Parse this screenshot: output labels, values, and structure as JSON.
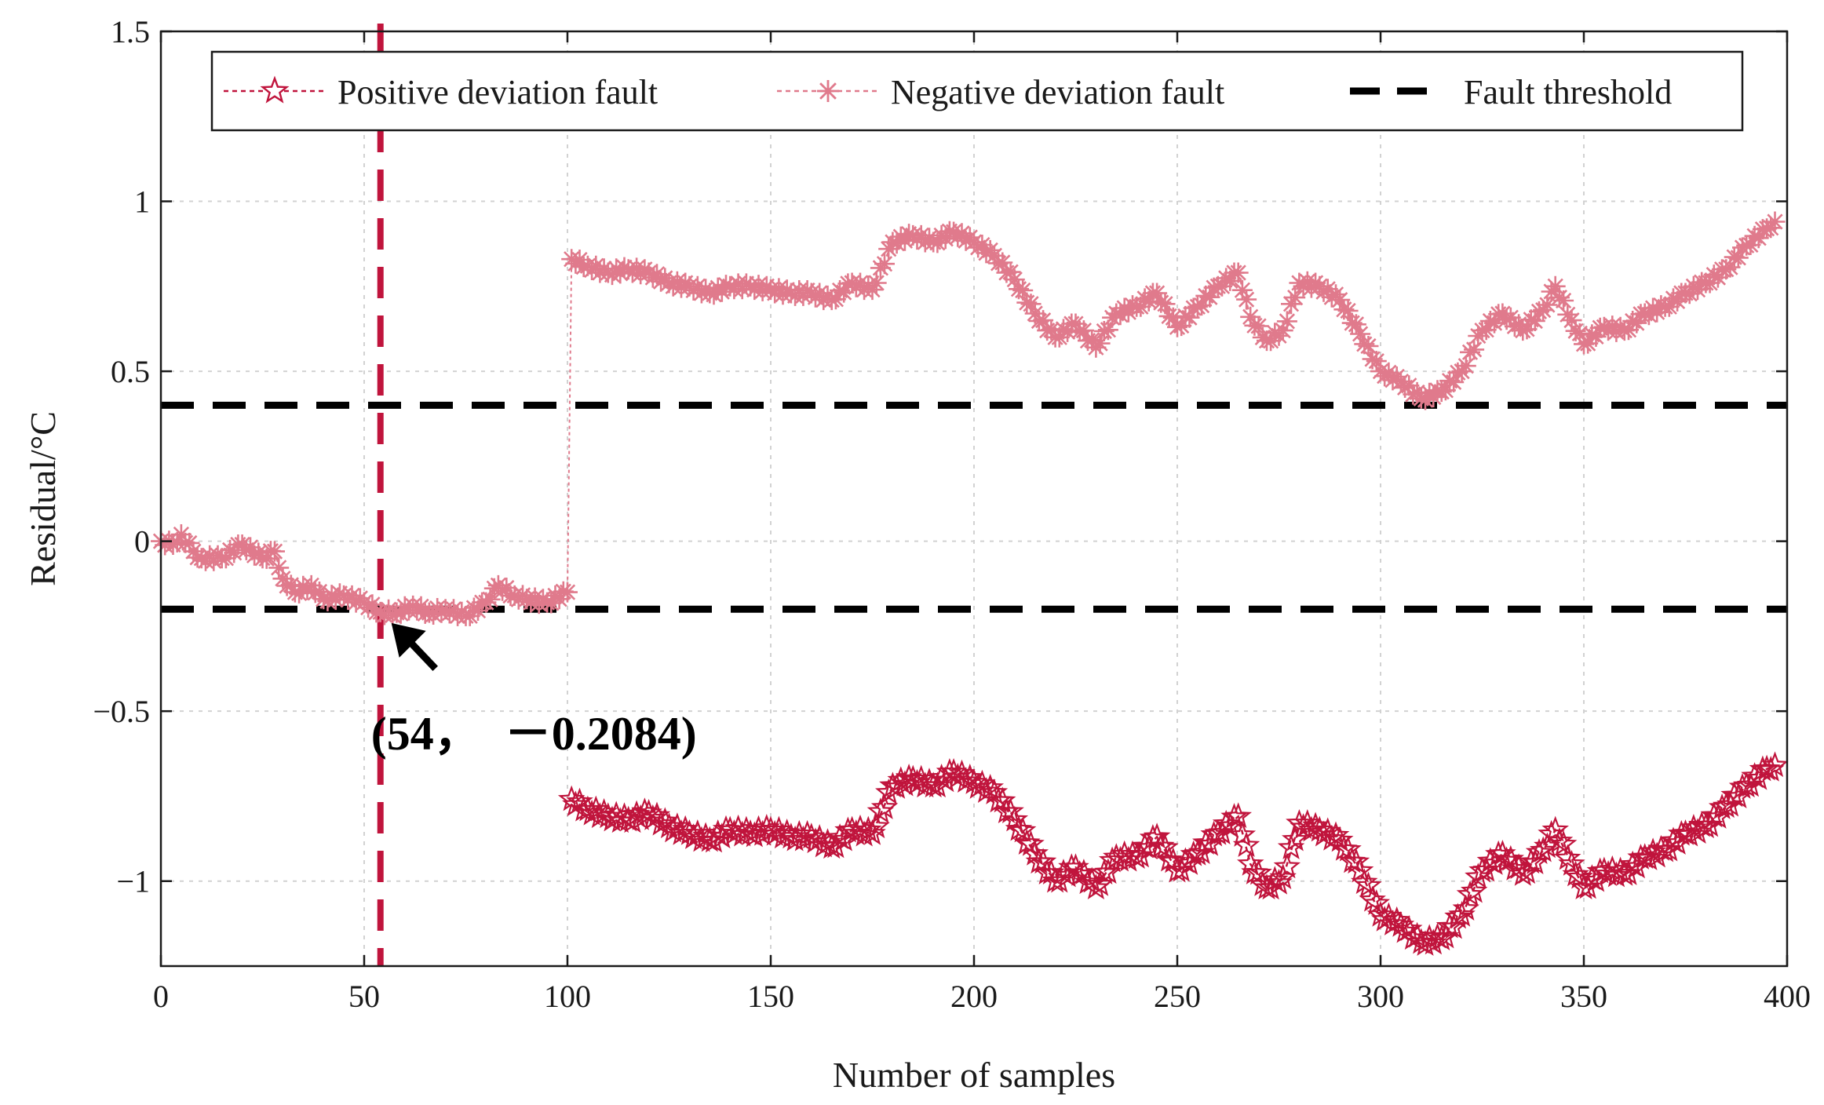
{
  "chart_data": {
    "type": "line",
    "xlabel": "Number of samples",
    "ylabel": "Residual/°C",
    "xlim": [
      0,
      400
    ],
    "ylim": [
      -1.25,
      1.5
    ],
    "x_ticks": [
      0,
      50,
      100,
      150,
      200,
      250,
      300,
      350,
      400
    ],
    "y_ticks": [
      -1,
      -0.5,
      0,
      0.5,
      1,
      1.5
    ],
    "x_tick_labels": [
      "0",
      "50",
      "100",
      "150",
      "200",
      "250",
      "300",
      "350",
      "400"
    ],
    "y_tick_labels": [
      "−1",
      "−0.5",
      "0",
      "0.5",
      "1",
      "1.5"
    ],
    "grid": true,
    "legend_position": "top",
    "colors": {
      "positive": "#c0143c",
      "negative": "#e07a8c",
      "threshold": "#000000",
      "grid": "#d2d2d2"
    },
    "series": [
      {
        "name": "Positive deviation fault",
        "marker": "pentagram",
        "color": "#c0143c",
        "points": [
          [
            101,
            -0.76
          ],
          [
            105,
            -0.79
          ],
          [
            110,
            -0.81
          ],
          [
            115,
            -0.82
          ],
          [
            120,
            -0.8
          ],
          [
            125,
            -0.84
          ],
          [
            130,
            -0.86
          ],
          [
            135,
            -0.88
          ],
          [
            140,
            -0.85
          ],
          [
            145,
            -0.86
          ],
          [
            150,
            -0.85
          ],
          [
            155,
            -0.87
          ],
          [
            160,
            -0.87
          ],
          [
            165,
            -0.9
          ],
          [
            170,
            -0.85
          ],
          [
            175,
            -0.86
          ],
          [
            180,
            -0.72
          ],
          [
            185,
            -0.7
          ],
          [
            190,
            -0.72
          ],
          [
            195,
            -0.68
          ],
          [
            200,
            -0.71
          ],
          [
            205,
            -0.74
          ],
          [
            210,
            -0.82
          ],
          [
            215,
            -0.92
          ],
          [
            220,
            -1.0
          ],
          [
            225,
            -0.96
          ],
          [
            230,
            -1.02
          ],
          [
            235,
            -0.93
          ],
          [
            240,
            -0.93
          ],
          [
            245,
            -0.87
          ],
          [
            250,
            -0.97
          ],
          [
            255,
            -0.92
          ],
          [
            260,
            -0.86
          ],
          [
            265,
            -0.81
          ],
          [
            268,
            -0.95
          ],
          [
            272,
            -1.02
          ],
          [
            276,
            -0.99
          ],
          [
            280,
            -0.83
          ],
          [
            285,
            -0.85
          ],
          [
            290,
            -0.88
          ],
          [
            295,
            -0.97
          ],
          [
            300,
            -1.1
          ],
          [
            305,
            -1.13
          ],
          [
            310,
            -1.18
          ],
          [
            315,
            -1.17
          ],
          [
            320,
            -1.1
          ],
          [
            325,
            -0.97
          ],
          [
            330,
            -0.92
          ],
          [
            335,
            -0.98
          ],
          [
            340,
            -0.91
          ],
          [
            343,
            -0.85
          ],
          [
            347,
            -0.95
          ],
          [
            350,
            -1.02
          ],
          [
            355,
            -0.97
          ],
          [
            360,
            -0.98
          ],
          [
            365,
            -0.93
          ],
          [
            370,
            -0.91
          ],
          [
            375,
            -0.86
          ],
          [
            380,
            -0.84
          ],
          [
            385,
            -0.78
          ],
          [
            390,
            -0.72
          ],
          [
            395,
            -0.67
          ],
          [
            397,
            -0.66
          ]
        ]
      },
      {
        "name": "Negative deviation fault",
        "marker": "asterisk",
        "color": "#e07a8c",
        "points": [
          [
            0,
            0.0
          ],
          [
            3,
            -0.01
          ],
          [
            5,
            0.02
          ],
          [
            8,
            -0.03
          ],
          [
            10,
            -0.05
          ],
          [
            15,
            -0.05
          ],
          [
            20,
            -0.01
          ],
          [
            25,
            -0.05
          ],
          [
            28,
            -0.03
          ],
          [
            30,
            -0.11
          ],
          [
            33,
            -0.15
          ],
          [
            37,
            -0.13
          ],
          [
            40,
            -0.17
          ],
          [
            45,
            -0.16
          ],
          [
            50,
            -0.18
          ],
          [
            54,
            -0.2084
          ],
          [
            58,
            -0.21
          ],
          [
            62,
            -0.19
          ],
          [
            66,
            -0.21
          ],
          [
            70,
            -0.2
          ],
          [
            75,
            -0.22
          ],
          [
            80,
            -0.18
          ],
          [
            83,
            -0.13
          ],
          [
            87,
            -0.16
          ],
          [
            90,
            -0.17
          ],
          [
            95,
            -0.18
          ],
          [
            100,
            -0.15
          ],
          [
            101,
            0.83
          ],
          [
            105,
            0.81
          ],
          [
            110,
            0.79
          ],
          [
            115,
            0.8
          ],
          [
            120,
            0.79
          ],
          [
            125,
            0.76
          ],
          [
            130,
            0.75
          ],
          [
            135,
            0.73
          ],
          [
            140,
            0.75
          ],
          [
            145,
            0.75
          ],
          [
            150,
            0.74
          ],
          [
            155,
            0.73
          ],
          [
            160,
            0.73
          ],
          [
            165,
            0.71
          ],
          [
            170,
            0.76
          ],
          [
            175,
            0.74
          ],
          [
            180,
            0.88
          ],
          [
            185,
            0.9
          ],
          [
            190,
            0.88
          ],
          [
            195,
            0.91
          ],
          [
            200,
            0.88
          ],
          [
            205,
            0.84
          ],
          [
            210,
            0.77
          ],
          [
            215,
            0.67
          ],
          [
            220,
            0.6
          ],
          [
            225,
            0.64
          ],
          [
            230,
            0.57
          ],
          [
            235,
            0.67
          ],
          [
            240,
            0.69
          ],
          [
            245,
            0.73
          ],
          [
            250,
            0.63
          ],
          [
            255,
            0.69
          ],
          [
            260,
            0.75
          ],
          [
            265,
            0.79
          ],
          [
            268,
            0.66
          ],
          [
            272,
            0.59
          ],
          [
            276,
            0.62
          ],
          [
            280,
            0.76
          ],
          [
            285,
            0.75
          ],
          [
            290,
            0.71
          ],
          [
            295,
            0.61
          ],
          [
            300,
            0.5
          ],
          [
            305,
            0.47
          ],
          [
            310,
            0.42
          ],
          [
            315,
            0.44
          ],
          [
            320,
            0.5
          ],
          [
            325,
            0.62
          ],
          [
            330,
            0.67
          ],
          [
            335,
            0.62
          ],
          [
            340,
            0.68
          ],
          [
            343,
            0.75
          ],
          [
            347,
            0.65
          ],
          [
            350,
            0.58
          ],
          [
            355,
            0.63
          ],
          [
            360,
            0.62
          ],
          [
            365,
            0.67
          ],
          [
            370,
            0.69
          ],
          [
            375,
            0.73
          ],
          [
            380,
            0.76
          ],
          [
            385,
            0.8
          ],
          [
            390,
            0.87
          ],
          [
            395,
            0.92
          ],
          [
            397,
            0.94
          ]
        ]
      },
      {
        "name": "Fault threshold",
        "style": "dashed",
        "color": "#000000",
        "values": [
          0.4,
          -0.2
        ]
      }
    ],
    "vertical_marker": {
      "x": 54,
      "style": "dashed",
      "color": "#c0143c"
    },
    "annotation": {
      "text": "(54，　－0.2084)",
      "x": 54,
      "y": -0.2084
    }
  }
}
